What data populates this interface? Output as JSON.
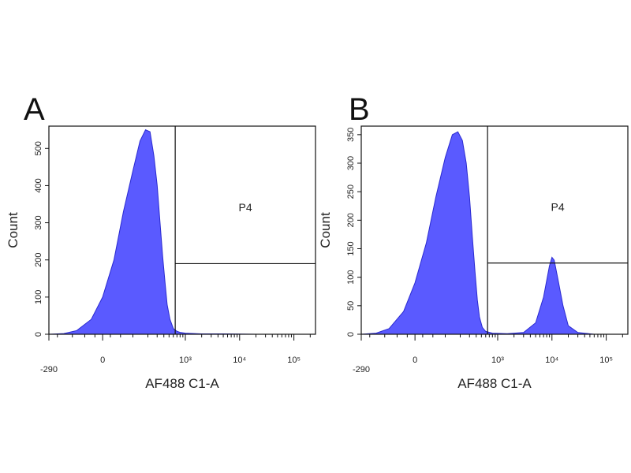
{
  "chart_data": [
    {
      "type": "area",
      "panel_label": "A",
      "xlabel": "AF488 C1-A",
      "ylabel": "Count",
      "x_scale": "biexponential",
      "xlim": [
        -290,
        250000
      ],
      "x_ticks": [
        "-290",
        "0",
        "10³",
        "10⁴",
        "10⁵"
      ],
      "y_ticks": [
        "0",
        "100",
        "200",
        "300",
        "400",
        "500"
      ],
      "ylim": [
        0,
        560
      ],
      "gate": {
        "name": "P4",
        "x_start": 650,
        "y_line": 190
      },
      "series": [
        {
          "color": "#5a5aff",
          "x": [
            -290,
            -150,
            -80,
            -30,
            0,
            30,
            60,
            100,
            140,
            180,
            220,
            260,
            300,
            340,
            380,
            420,
            460,
            520,
            600,
            700,
            800,
            1000,
            2000,
            5000,
            20000,
            100000,
            250000
          ],
          "y": [
            0,
            2,
            10,
            40,
            100,
            200,
            330,
            440,
            520,
            550,
            545,
            480,
            400,
            300,
            210,
            140,
            80,
            40,
            15,
            8,
            5,
            3,
            1,
            1,
            0,
            0,
            0
          ]
        }
      ]
    },
    {
      "type": "area",
      "panel_label": "B",
      "xlabel": "AF488 C1-A",
      "ylabel": "Count",
      "x_scale": "biexponential",
      "xlim": [
        -290,
        250000
      ],
      "x_ticks": [
        "-290",
        "0",
        "10³",
        "10⁴",
        "10⁵"
      ],
      "y_ticks": [
        "0",
        "50",
        "100",
        "150",
        "200",
        "250",
        "300",
        "350"
      ],
      "ylim": [
        0,
        365
      ],
      "gate": {
        "name": "P4",
        "x_start": 650,
        "y_line": 125
      },
      "series": [
        {
          "color": "#5a5aff",
          "x": [
            -290,
            -150,
            -80,
            -30,
            0,
            30,
            60,
            100,
            140,
            180,
            220,
            260,
            300,
            340,
            380,
            420,
            460,
            520,
            600,
            800,
            1500,
            3000,
            5000,
            7000,
            9000,
            10000,
            11000,
            13000,
            16000,
            20000,
            30000,
            60000,
            250000
          ],
          "y": [
            0,
            2,
            10,
            40,
            90,
            160,
            240,
            310,
            350,
            355,
            340,
            300,
            240,
            170,
            110,
            60,
            30,
            12,
            5,
            2,
            1,
            3,
            20,
            65,
            120,
            135,
            130,
            95,
            50,
            15,
            3,
            0,
            0
          ]
        }
      ]
    }
  ]
}
